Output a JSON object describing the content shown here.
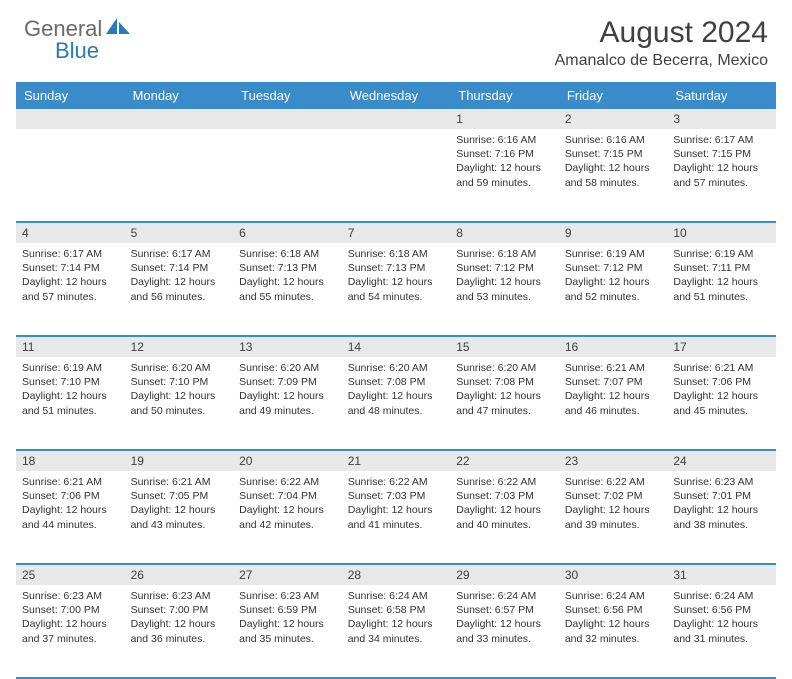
{
  "brand": {
    "word1": "General",
    "word2": "Blue",
    "color_word1": "#6a6a6a",
    "color_word2": "#2a7ab8",
    "shape_color": "#2a7ab8"
  },
  "title": {
    "month_year": "August 2024",
    "location": "Amanalco de Becerra, Mexico",
    "title_fontsize": 30,
    "title_color": "#404040",
    "location_fontsize": 16
  },
  "header_row": {
    "background_color": "#3a8bc9",
    "text_color": "#ffffff",
    "days": [
      "Sunday",
      "Monday",
      "Tuesday",
      "Wednesday",
      "Thursday",
      "Friday",
      "Saturday"
    ]
  },
  "cell_style": {
    "daynum_bg": "#e8e8e8",
    "border_color": "#3a8bc9",
    "info_fontsize": 10.5,
    "daynum_fontsize": 12
  },
  "weeks": [
    [
      null,
      null,
      null,
      null,
      {
        "n": "1",
        "sr": "Sunrise: 6:16 AM",
        "ss": "Sunset: 7:16 PM",
        "dl1": "Daylight: 12 hours",
        "dl2": "and 59 minutes."
      },
      {
        "n": "2",
        "sr": "Sunrise: 6:16 AM",
        "ss": "Sunset: 7:15 PM",
        "dl1": "Daylight: 12 hours",
        "dl2": "and 58 minutes."
      },
      {
        "n": "3",
        "sr": "Sunrise: 6:17 AM",
        "ss": "Sunset: 7:15 PM",
        "dl1": "Daylight: 12 hours",
        "dl2": "and 57 minutes."
      }
    ],
    [
      {
        "n": "4",
        "sr": "Sunrise: 6:17 AM",
        "ss": "Sunset: 7:14 PM",
        "dl1": "Daylight: 12 hours",
        "dl2": "and 57 minutes."
      },
      {
        "n": "5",
        "sr": "Sunrise: 6:17 AM",
        "ss": "Sunset: 7:14 PM",
        "dl1": "Daylight: 12 hours",
        "dl2": "and 56 minutes."
      },
      {
        "n": "6",
        "sr": "Sunrise: 6:18 AM",
        "ss": "Sunset: 7:13 PM",
        "dl1": "Daylight: 12 hours",
        "dl2": "and 55 minutes."
      },
      {
        "n": "7",
        "sr": "Sunrise: 6:18 AM",
        "ss": "Sunset: 7:13 PM",
        "dl1": "Daylight: 12 hours",
        "dl2": "and 54 minutes."
      },
      {
        "n": "8",
        "sr": "Sunrise: 6:18 AM",
        "ss": "Sunset: 7:12 PM",
        "dl1": "Daylight: 12 hours",
        "dl2": "and 53 minutes."
      },
      {
        "n": "9",
        "sr": "Sunrise: 6:19 AM",
        "ss": "Sunset: 7:12 PM",
        "dl1": "Daylight: 12 hours",
        "dl2": "and 52 minutes."
      },
      {
        "n": "10",
        "sr": "Sunrise: 6:19 AM",
        "ss": "Sunset: 7:11 PM",
        "dl1": "Daylight: 12 hours",
        "dl2": "and 51 minutes."
      }
    ],
    [
      {
        "n": "11",
        "sr": "Sunrise: 6:19 AM",
        "ss": "Sunset: 7:10 PM",
        "dl1": "Daylight: 12 hours",
        "dl2": "and 51 minutes."
      },
      {
        "n": "12",
        "sr": "Sunrise: 6:20 AM",
        "ss": "Sunset: 7:10 PM",
        "dl1": "Daylight: 12 hours",
        "dl2": "and 50 minutes."
      },
      {
        "n": "13",
        "sr": "Sunrise: 6:20 AM",
        "ss": "Sunset: 7:09 PM",
        "dl1": "Daylight: 12 hours",
        "dl2": "and 49 minutes."
      },
      {
        "n": "14",
        "sr": "Sunrise: 6:20 AM",
        "ss": "Sunset: 7:08 PM",
        "dl1": "Daylight: 12 hours",
        "dl2": "and 48 minutes."
      },
      {
        "n": "15",
        "sr": "Sunrise: 6:20 AM",
        "ss": "Sunset: 7:08 PM",
        "dl1": "Daylight: 12 hours",
        "dl2": "and 47 minutes."
      },
      {
        "n": "16",
        "sr": "Sunrise: 6:21 AM",
        "ss": "Sunset: 7:07 PM",
        "dl1": "Daylight: 12 hours",
        "dl2": "and 46 minutes."
      },
      {
        "n": "17",
        "sr": "Sunrise: 6:21 AM",
        "ss": "Sunset: 7:06 PM",
        "dl1": "Daylight: 12 hours",
        "dl2": "and 45 minutes."
      }
    ],
    [
      {
        "n": "18",
        "sr": "Sunrise: 6:21 AM",
        "ss": "Sunset: 7:06 PM",
        "dl1": "Daylight: 12 hours",
        "dl2": "and 44 minutes."
      },
      {
        "n": "19",
        "sr": "Sunrise: 6:21 AM",
        "ss": "Sunset: 7:05 PM",
        "dl1": "Daylight: 12 hours",
        "dl2": "and 43 minutes."
      },
      {
        "n": "20",
        "sr": "Sunrise: 6:22 AM",
        "ss": "Sunset: 7:04 PM",
        "dl1": "Daylight: 12 hours",
        "dl2": "and 42 minutes."
      },
      {
        "n": "21",
        "sr": "Sunrise: 6:22 AM",
        "ss": "Sunset: 7:03 PM",
        "dl1": "Daylight: 12 hours",
        "dl2": "and 41 minutes."
      },
      {
        "n": "22",
        "sr": "Sunrise: 6:22 AM",
        "ss": "Sunset: 7:03 PM",
        "dl1": "Daylight: 12 hours",
        "dl2": "and 40 minutes."
      },
      {
        "n": "23",
        "sr": "Sunrise: 6:22 AM",
        "ss": "Sunset: 7:02 PM",
        "dl1": "Daylight: 12 hours",
        "dl2": "and 39 minutes."
      },
      {
        "n": "24",
        "sr": "Sunrise: 6:23 AM",
        "ss": "Sunset: 7:01 PM",
        "dl1": "Daylight: 12 hours",
        "dl2": "and 38 minutes."
      }
    ],
    [
      {
        "n": "25",
        "sr": "Sunrise: 6:23 AM",
        "ss": "Sunset: 7:00 PM",
        "dl1": "Daylight: 12 hours",
        "dl2": "and 37 minutes."
      },
      {
        "n": "26",
        "sr": "Sunrise: 6:23 AM",
        "ss": "Sunset: 7:00 PM",
        "dl1": "Daylight: 12 hours",
        "dl2": "and 36 minutes."
      },
      {
        "n": "27",
        "sr": "Sunrise: 6:23 AM",
        "ss": "Sunset: 6:59 PM",
        "dl1": "Daylight: 12 hours",
        "dl2": "and 35 minutes."
      },
      {
        "n": "28",
        "sr": "Sunrise: 6:24 AM",
        "ss": "Sunset: 6:58 PM",
        "dl1": "Daylight: 12 hours",
        "dl2": "and 34 minutes."
      },
      {
        "n": "29",
        "sr": "Sunrise: 6:24 AM",
        "ss": "Sunset: 6:57 PM",
        "dl1": "Daylight: 12 hours",
        "dl2": "and 33 minutes."
      },
      {
        "n": "30",
        "sr": "Sunrise: 6:24 AM",
        "ss": "Sunset: 6:56 PM",
        "dl1": "Daylight: 12 hours",
        "dl2": "and 32 minutes."
      },
      {
        "n": "31",
        "sr": "Sunrise: 6:24 AM",
        "ss": "Sunset: 6:56 PM",
        "dl1": "Daylight: 12 hours",
        "dl2": "and 31 minutes."
      }
    ]
  ]
}
